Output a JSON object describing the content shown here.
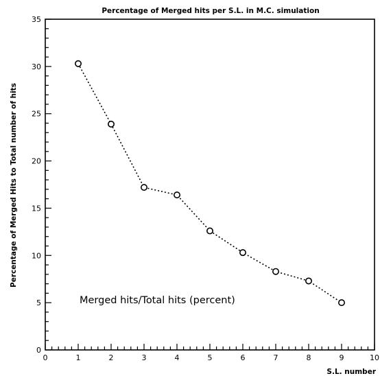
{
  "chart_data": {
    "type": "line",
    "title": "Percentage of Merged hits per S.L. in M.C. simulation",
    "xlabel": "S.L. number",
    "ylabel": "Percentage of Merged Hits to Total number of hits",
    "xlim": [
      0,
      10
    ],
    "ylim": [
      0,
      35
    ],
    "x_ticks": [
      "0",
      "1",
      "2",
      "3",
      "4",
      "5",
      "6",
      "7",
      "8",
      "9",
      "10"
    ],
    "y_ticks": [
      "0",
      "5",
      "10",
      "15",
      "20",
      "25",
      "30",
      "35"
    ],
    "grid": false,
    "annotation": "Merged hits/Total hits (percent)",
    "series": [
      {
        "x": [
          1,
          2,
          3,
          4,
          5,
          6,
          7,
          8,
          9
        ],
        "values": [
          30.3,
          23.9,
          17.2,
          16.4,
          12.6,
          10.3,
          8.3,
          7.3,
          5.0
        ],
        "line_style": "dotted",
        "marker": "open-circle",
        "color": "#000000"
      }
    ]
  }
}
